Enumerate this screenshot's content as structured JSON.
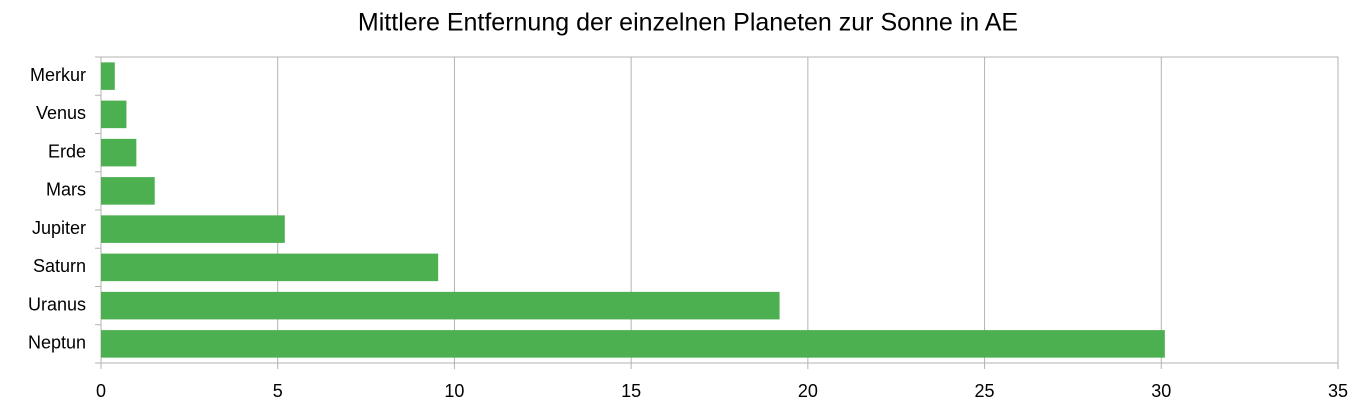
{
  "chart_data": {
    "type": "bar",
    "orientation": "horizontal",
    "title": "Mittlere Entfernung der einzelnen Planeten zur Sonne in AE",
    "categories": [
      "Merkur",
      "Venus",
      "Erde",
      "Mars",
      "Jupiter",
      "Saturn",
      "Uranus",
      "Neptun"
    ],
    "values": [
      0.39,
      0.72,
      1.0,
      1.52,
      5.2,
      9.54,
      19.2,
      30.1
    ],
    "color": "#4caf50",
    "xlim": [
      0,
      35
    ],
    "xticks": [
      0,
      5,
      10,
      15,
      20,
      25,
      30,
      35
    ],
    "grid": true
  }
}
